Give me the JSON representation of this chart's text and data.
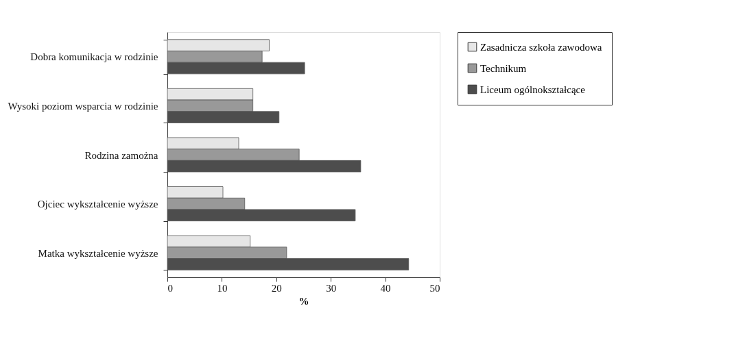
{
  "chart_data": {
    "type": "bar",
    "orientation": "horizontal",
    "xlabel": "%",
    "categories": [
      "Dobra komunikacja w rodzinie",
      "Wysoki poziom wsparcia w rodzinie",
      "Rodzina zamożna",
      "Ojciec wykształcenie wyższe",
      "Matka wykształcenie wyższe"
    ],
    "series": [
      {
        "name": "Zasadnicza szkoła zawodowa",
        "color": "#e6e6e6",
        "values": [
          18.7,
          15.7,
          13.1,
          10.2,
          15.2
        ]
      },
      {
        "name": "Technikum",
        "color": "#999999",
        "values": [
          17.4,
          15.7,
          24.2,
          14.2,
          21.9
        ]
      },
      {
        "name": "Liceum ogólnokształcące",
        "color": "#4d4d4d",
        "values": [
          25.2,
          20.5,
          35.5,
          34.5,
          44.3
        ]
      }
    ],
    "xlim": [
      0,
      50
    ],
    "xticks": [
      0,
      10,
      20,
      30,
      40,
      50
    ],
    "grid": false,
    "legend": "right"
  }
}
